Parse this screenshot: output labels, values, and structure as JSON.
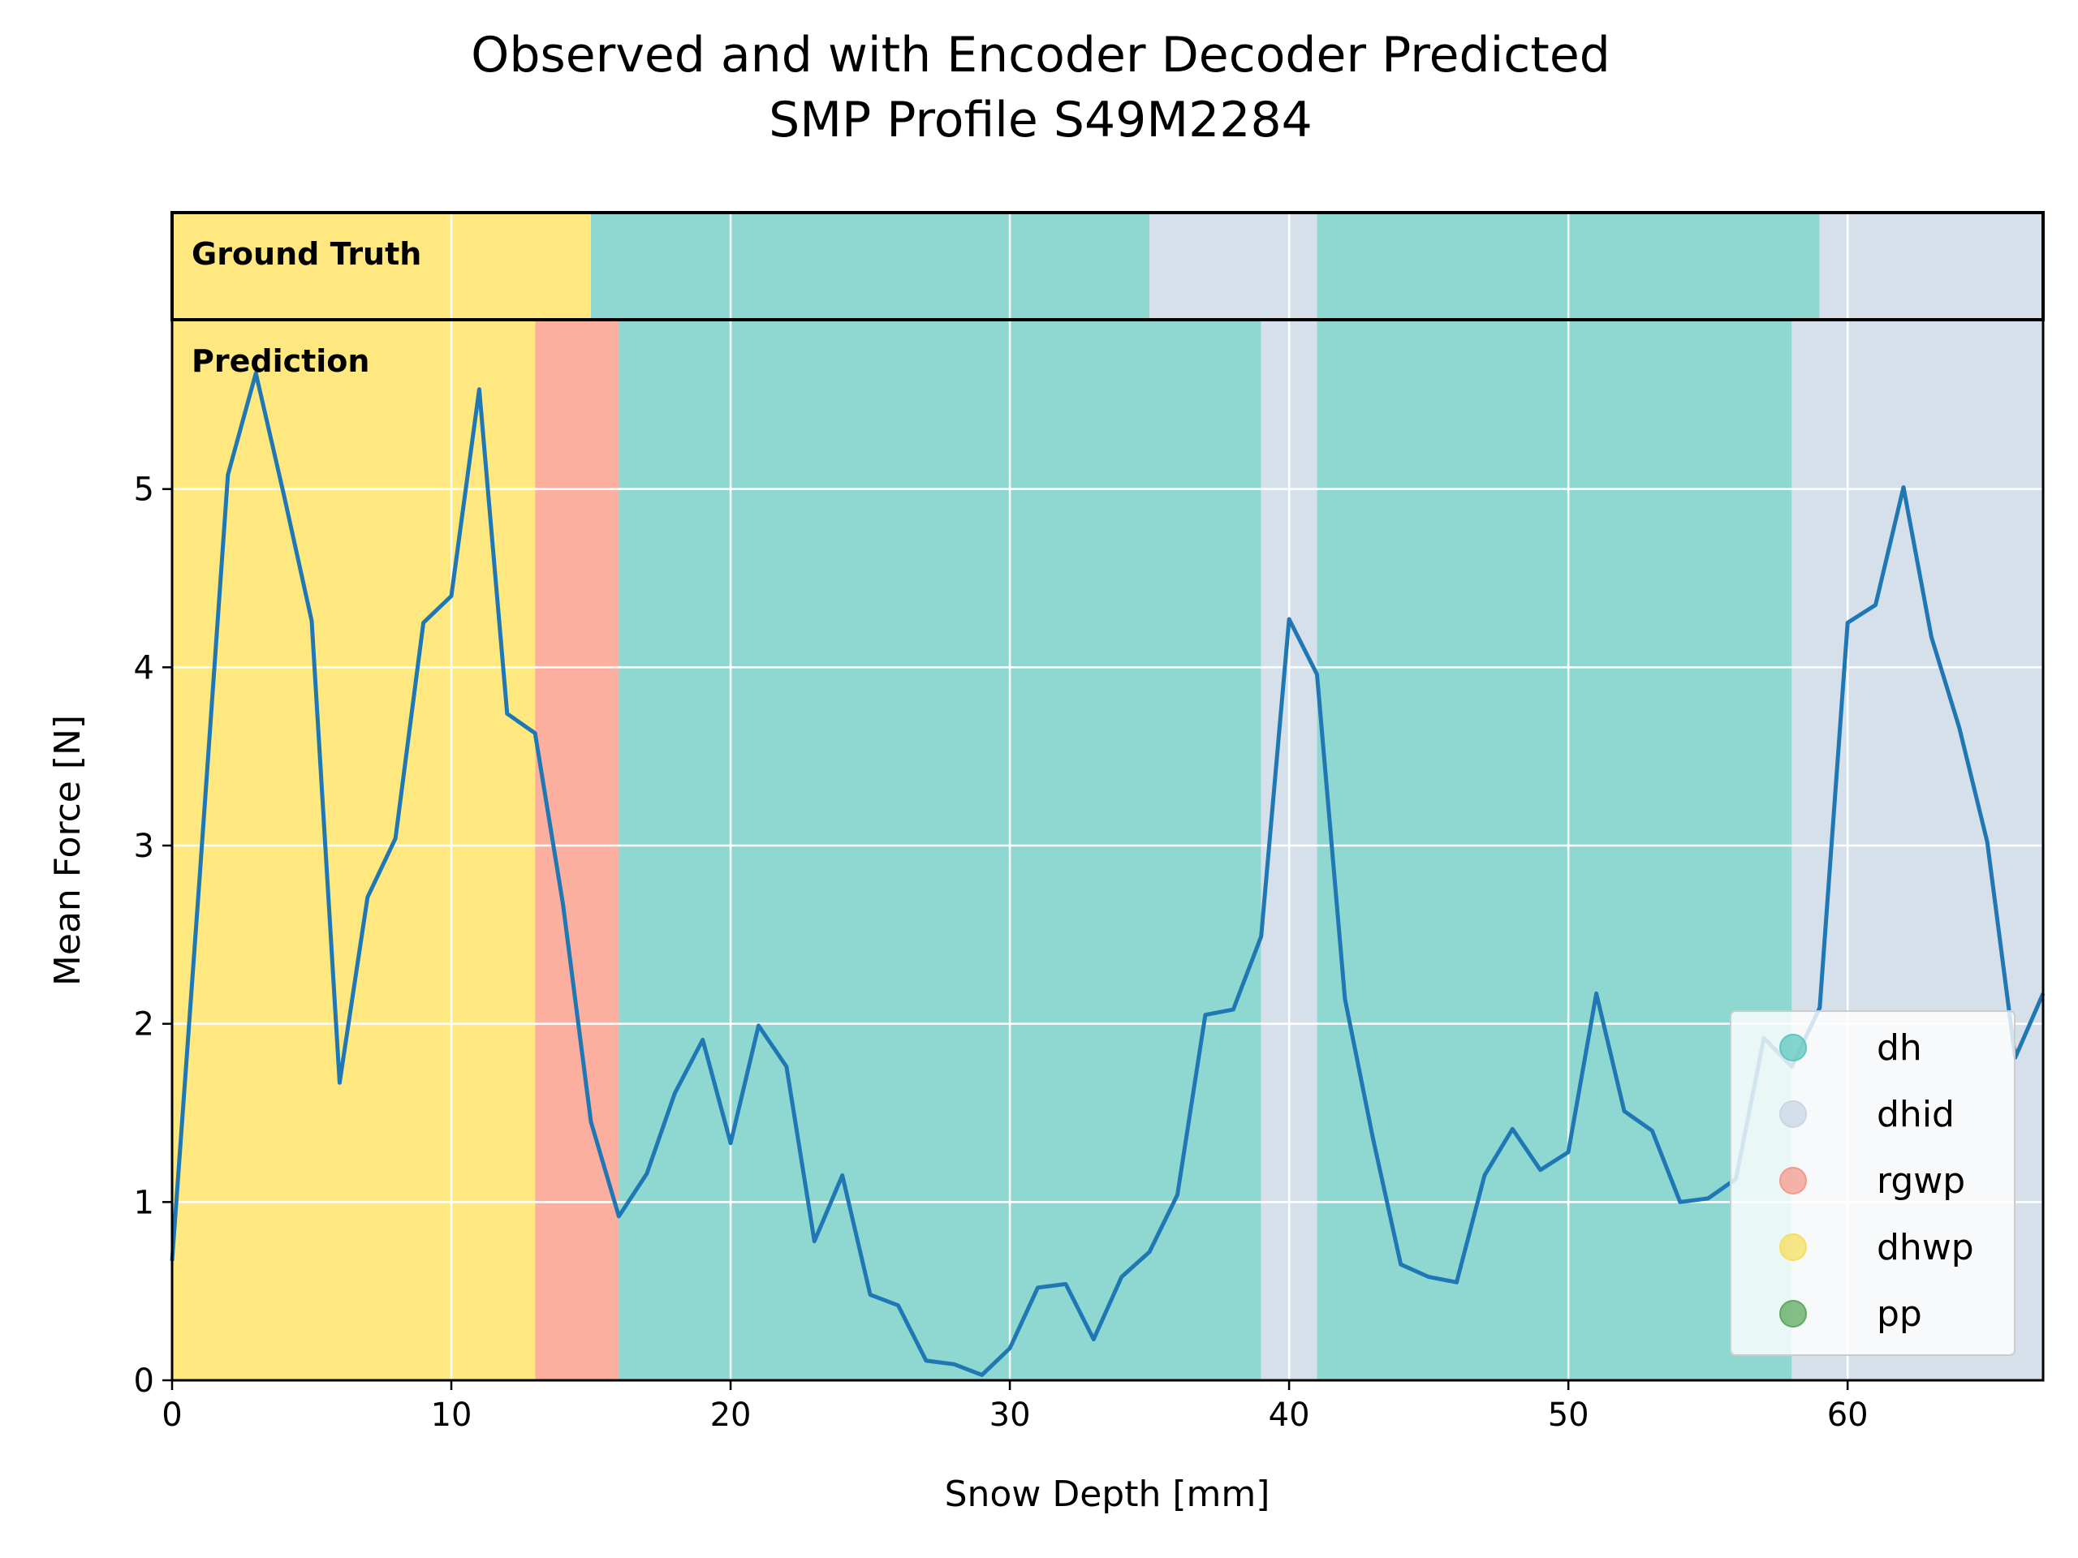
{
  "chart_data": {
    "type": "line",
    "title_line1": "Observed and with Encoder Decoder Predicted",
    "title_line2": "SMP Profile S49M2284",
    "xlabel": "Snow Depth [mm]",
    "ylabel": "Mean Force [N]",
    "xlim": [
      0,
      67
    ],
    "ylim": [
      0,
      5.95
    ],
    "xticks": [
      0,
      10,
      20,
      30,
      40,
      50,
      60
    ],
    "yticks": [
      0,
      1,
      2,
      3,
      4,
      5
    ],
    "grid": true,
    "legend_position": "lower-right",
    "ground_truth_label": "Ground Truth",
    "prediction_label": "Prediction",
    "colors": {
      "dh": "#8fd8d2",
      "dhid": "#d6e0eb",
      "rgwp": "#fdaf9f",
      "dhwp": "#ffe880",
      "pp": "#6fb06f",
      "line": "#1f77b4"
    },
    "legend": [
      {
        "label": "dh",
        "color": "#5ec8bf"
      },
      {
        "label": "dhid",
        "color": "#c9d5e6"
      },
      {
        "label": "rgwp",
        "color": "#f39a8c"
      },
      {
        "label": "dhwp",
        "color": "#f7df5e"
      },
      {
        "label": "pp",
        "color": "#5fa85f"
      }
    ],
    "ground_truth_segments": [
      {
        "start": 0,
        "end": 15,
        "class": "dhwp"
      },
      {
        "start": 15,
        "end": 35,
        "class": "dh"
      },
      {
        "start": 35,
        "end": 41,
        "class": "dhid"
      },
      {
        "start": 41,
        "end": 59,
        "class": "dh"
      },
      {
        "start": 59,
        "end": 67,
        "class": "dhid"
      }
    ],
    "prediction_segments": [
      {
        "start": 0,
        "end": 13,
        "class": "dhwp"
      },
      {
        "start": 13,
        "end": 16,
        "class": "rgwp"
      },
      {
        "start": 16,
        "end": 39,
        "class": "dh"
      },
      {
        "start": 39,
        "end": 41,
        "class": "dhid"
      },
      {
        "start": 41,
        "end": 58,
        "class": "dh"
      },
      {
        "start": 58,
        "end": 67,
        "class": "dhid"
      }
    ],
    "series": [
      {
        "x": [
          0,
          1,
          2,
          3,
          4,
          5,
          6,
          7,
          8,
          9,
          10,
          11,
          12,
          13,
          14,
          15,
          16,
          17,
          18,
          19,
          20,
          21,
          22,
          23,
          24,
          25,
          26,
          27,
          28,
          29,
          30,
          31,
          32,
          33,
          34,
          35,
          36,
          37,
          38,
          39,
          40,
          41,
          42,
          43,
          44,
          45,
          46,
          47,
          48,
          49,
          50,
          51,
          52,
          53,
          54,
          55,
          56,
          57,
          58,
          59,
          60,
          61,
          62,
          63,
          64,
          65,
          66,
          67
        ],
        "values": [
          0.67,
          2.85,
          5.08,
          5.65,
          4.97,
          4.26,
          1.67,
          2.71,
          3.04,
          4.25,
          4.4,
          5.56,
          3.74,
          3.63,
          2.67,
          1.45,
          0.92,
          1.16,
          1.61,
          1.91,
          1.33,
          1.99,
          1.76,
          0.78,
          1.15,
          0.48,
          0.42,
          0.11,
          0.09,
          0.03,
          0.18,
          0.52,
          0.54,
          0.23,
          0.58,
          0.72,
          1.04,
          2.05,
          2.08,
          2.49,
          4.27,
          3.96,
          2.14,
          1.36,
          0.65,
          0.58,
          0.55,
          1.15,
          1.41,
          1.18,
          1.28,
          2.17,
          1.51,
          1.4,
          1.0,
          1.02,
          1.13,
          1.92,
          1.76,
          2.09,
          4.25,
          4.35,
          5.01,
          4.17,
          3.66,
          3.02,
          1.81,
          2.17
        ]
      }
    ]
  }
}
